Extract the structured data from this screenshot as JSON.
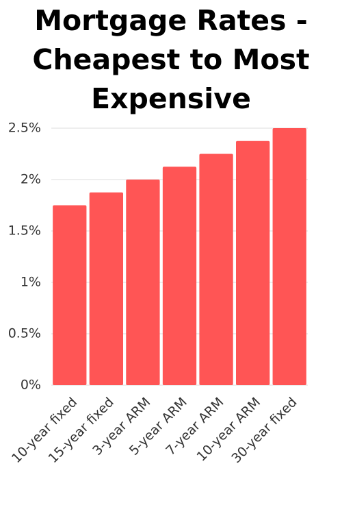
{
  "chart_data": {
    "type": "bar",
    "title": "Mortgage Rates - Cheapest to Most Expensive",
    "categories": [
      "10-year fixed",
      "15-year fixed",
      "3-year ARM",
      "5-year ARM",
      "7-year ARM",
      "10-year ARM",
      "30-year fixed"
    ],
    "values": [
      1.75,
      1.875,
      2,
      2.125,
      2.25,
      2.375,
      2.5
    ],
    "color": "#ff5555",
    "ylim": [
      0,
      2.5
    ],
    "yticks": [
      {
        "value": 0,
        "label": "0%"
      },
      {
        "value": 0.5,
        "label": "0.5%"
      },
      {
        "value": 1,
        "label": "1%"
      },
      {
        "value": 1.5,
        "label": "1.5%"
      },
      {
        "value": 2,
        "label": "2%"
      },
      {
        "value": 2.5,
        "label": "2.5%"
      }
    ],
    "grid": true
  }
}
